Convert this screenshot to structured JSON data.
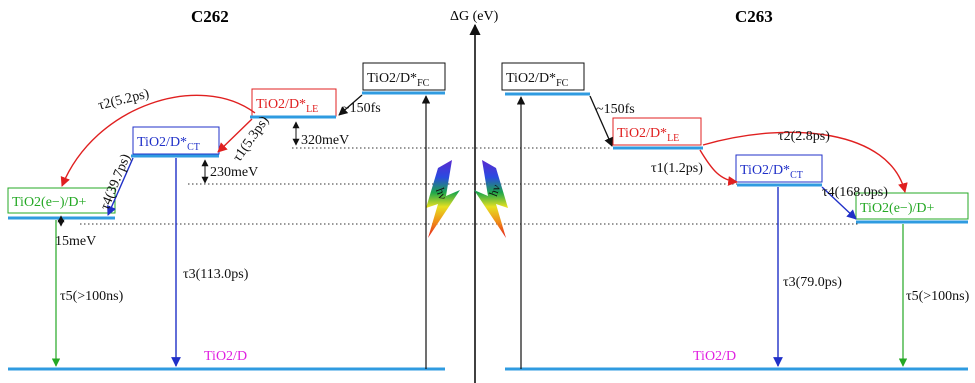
{
  "axis_label": "ΔG (eV)",
  "colors": {
    "level": "#2f9be0",
    "black": "#111111",
    "red": "#e02020",
    "blue": "#2030c8",
    "green": "#24a824",
    "magenta": "#e020e0",
    "dotted": "#333333"
  },
  "left": {
    "title": "C262",
    "fc_label": "TiO2/D*",
    "fc_sub": "FC",
    "le_label": "TiO2/D*",
    "le_sub": "LE",
    "ct_label": "TiO2/D*",
    "ct_sub": "CT",
    "inj_label": "TiO2(e−)/D+",
    "ground_label": "TiO2/D",
    "fc_le_time": "~150fs",
    "tau1": "τ1(5.3ps)",
    "tau2": "τ2(5.2ps)",
    "tau3": "τ3(113.0ps)",
    "tau4": "τ4(39.7ps)",
    "tau5": "τ5(>100ns)",
    "gap_fc_le": "320meV",
    "gap_le_ct": "230meV",
    "gap_ct_inj": "15meV"
  },
  "right": {
    "title": "C263",
    "fc_label": "TiO2/D*",
    "fc_sub": "FC",
    "le_label": "TiO2/D*",
    "le_sub": "LE",
    "ct_label": "TiO2/D*",
    "ct_sub": "CT",
    "inj_label": "TiO2(e−)/D+",
    "ground_label": "TiO2/D",
    "fc_le_time": "~150fs",
    "tau1": "τ1(1.2ps)",
    "tau2": "τ2(2.8ps)",
    "tau3": "τ3(79.0ps)",
    "tau4": "τ4(168.0ps)",
    "tau5": "τ5(>100ns)"
  },
  "lightning": {
    "left_label": "hν",
    "right_label": "hν"
  }
}
